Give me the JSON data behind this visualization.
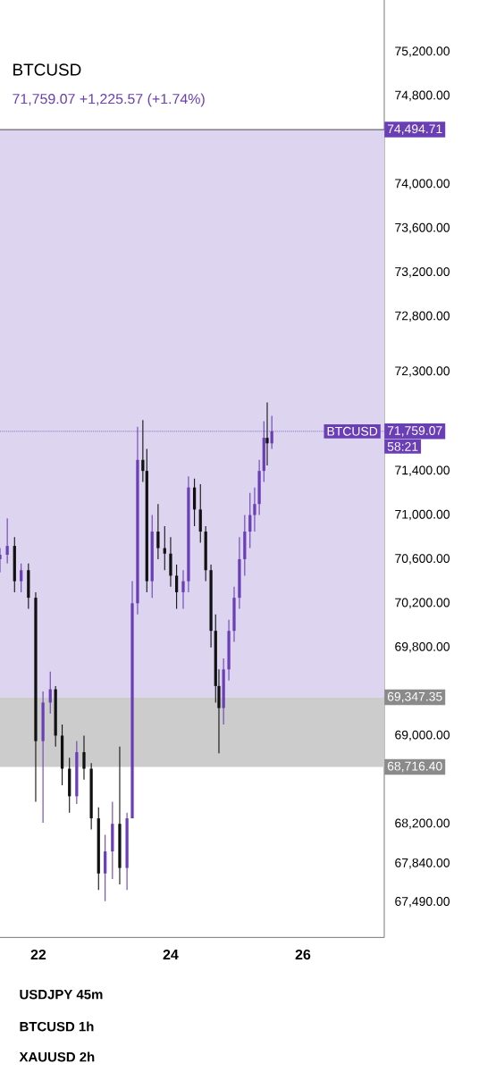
{
  "chart_data": {
    "type": "candlestick",
    "title": "BTCUSD",
    "subtitle": "71,759.07 +1,225.57 (+1.74%)",
    "grid": false,
    "colors": [
      "#6a3fb5",
      "#6a3fb5",
      "#111111",
      "#6a3fb5",
      "#111111",
      "#111111",
      "#6a3fb5",
      "#6a3fb5",
      "#111111",
      "#111111",
      "#111111",
      "#6a3fb5",
      "#111111",
      "#111111",
      "#111111",
      "#6a3fb5",
      "#6a3fb5",
      "#111111",
      "#6a3fb5",
      "#6a3fb5",
      "#6a3fb5",
      "#111111",
      "#111111",
      "#6a3fb5",
      "#111111",
      "#111111",
      "#111111",
      "#111111",
      "#6a3fb5",
      "#6a3fb5",
      "#111111",
      "#111111",
      "#111111",
      "#111111",
      "#111111",
      "#111111",
      "#6a3fb5",
      "#6a3fb5",
      "#6a3fb5",
      "#6a3fb5",
      "#6a3fb5",
      "#6a3fb5",
      "#6a3fb5",
      "#6a3fb5",
      "#6a3fb5",
      "#111111",
      "#6a3fb5"
    ],
    "x": [
      21.42,
      21.53,
      21.64,
      21.74,
      21.85,
      21.96,
      22.07,
      22.18,
      22.26,
      22.36,
      22.47,
      22.58,
      22.69,
      22.8,
      22.91,
      23.01,
      23.12,
      23.23,
      23.34,
      23.42,
      23.5,
      23.58,
      23.64,
      23.72,
      23.81,
      23.91,
      24.0,
      24.09,
      24.19,
      24.27,
      24.36,
      24.45,
      24.53,
      24.61,
      24.68,
      24.73,
      24.8,
      24.88,
      24.96,
      25.04,
      25.12,
      25.2,
      25.27,
      25.34,
      25.41,
      25.46,
      25.53
    ],
    "ohlc": [
      [
        70600,
        70700,
        70480,
        70640
      ],
      [
        70640,
        70970,
        70560,
        70720
      ],
      [
        70720,
        70800,
        70300,
        70400
      ],
      [
        70400,
        70560,
        70300,
        70500
      ],
      [
        70500,
        70560,
        70150,
        70250
      ],
      [
        70250,
        70300,
        68400,
        68950
      ],
      [
        68950,
        69400,
        68210,
        69300
      ],
      [
        69300,
        69580,
        69200,
        69420
      ],
      [
        69420,
        69450,
        68900,
        69000
      ],
      [
        69000,
        69100,
        68550,
        68700
      ],
      [
        68700,
        68800,
        68300,
        68450
      ],
      [
        68450,
        68950,
        68380,
        68850
      ],
      [
        68850,
        69000,
        68600,
        68700
      ],
      [
        68700,
        68750,
        68150,
        68250
      ],
      [
        68250,
        68350,
        67600,
        67750
      ],
      [
        67750,
        68100,
        67500,
        67950
      ],
      [
        67950,
        68400,
        67700,
        68200
      ],
      [
        68200,
        68900,
        67650,
        67800
      ],
      [
        67800,
        68300,
        67600,
        68250
      ],
      [
        68250,
        70400,
        68250,
        70200
      ],
      [
        70200,
        71800,
        70100,
        71500
      ],
      [
        71500,
        71860,
        71300,
        71400
      ],
      [
        71400,
        71600,
        70300,
        70400
      ],
      [
        70400,
        71000,
        70250,
        70850
      ],
      [
        70850,
        71100,
        70600,
        70700
      ],
      [
        70700,
        70900,
        70500,
        70650
      ],
      [
        70650,
        70800,
        70350,
        70450
      ],
      [
        70450,
        70550,
        70150,
        70300
      ],
      [
        70300,
        70500,
        70150,
        70400
      ],
      [
        70400,
        71350,
        70300,
        71250
      ],
      [
        71250,
        71330,
        70900,
        71050
      ],
      [
        71050,
        71280,
        70750,
        70850
      ],
      [
        70850,
        70900,
        70400,
        70500
      ],
      [
        70500,
        70550,
        69800,
        69950
      ],
      [
        69950,
        70100,
        69300,
        69450
      ],
      [
        69450,
        69600,
        68840,
        69250
      ],
      [
        69250,
        69700,
        69100,
        69600
      ],
      [
        69600,
        70050,
        69500,
        69950
      ],
      [
        69950,
        70350,
        69850,
        70250
      ],
      [
        70250,
        70800,
        70150,
        70600
      ],
      [
        70600,
        71000,
        70450,
        70850
      ],
      [
        70850,
        71200,
        70700,
        71000
      ],
      [
        71000,
        71250,
        70850,
        71100
      ],
      [
        71100,
        71500,
        71000,
        71400
      ],
      [
        71400,
        71850,
        71300,
        71700
      ],
      [
        71700,
        72020,
        71450,
        71650
      ],
      [
        71650,
        71900,
        71600,
        71759.07
      ]
    ],
    "xlim": [
      21.42,
      27.23
    ],
    "ylim": [
      67170,
      75740
    ],
    "xticks": [
      22,
      24,
      26
    ],
    "yticks": [
      {
        "value": 75200,
        "label": "75,200.00"
      },
      {
        "value": 74800,
        "label": "74,800.00"
      },
      {
        "value": 74000,
        "label": "74,000.00"
      },
      {
        "value": 73600,
        "label": "73,600.00"
      },
      {
        "value": 73200,
        "label": "73,200.00"
      },
      {
        "value": 72800,
        "label": "72,800.00"
      },
      {
        "value": 72300,
        "label": "72,300.00"
      },
      {
        "value": 71400,
        "label": "71,400.00"
      },
      {
        "value": 71000,
        "label": "71,000.00"
      },
      {
        "value": 70600,
        "label": "70,600.00"
      },
      {
        "value": 70200,
        "label": "70,200.00"
      },
      {
        "value": 69800,
        "label": "69,800.00"
      },
      {
        "value": 69000,
        "label": "69,000.00"
      },
      {
        "value": 68200,
        "label": "68,200.00"
      },
      {
        "value": 67840,
        "label": "67,840.00"
      },
      {
        "value": 67490,
        "label": "67,490.00"
      }
    ],
    "ref_lines": [
      {
        "axis": "y",
        "value": 74494.71,
        "label": "74,494.71",
        "color": "#222222",
        "line_style": "solid"
      },
      {
        "axis": "y",
        "value": 71759.07,
        "label": "71,759.07",
        "color": "#6a3fb5",
        "line_style": "dotted"
      }
    ],
    "bands": [
      {
        "axis": "y",
        "from": 69347.35,
        "to": 74494.71,
        "label": "69,347.35",
        "color": "#ddd5f0"
      },
      {
        "axis": "y",
        "from": 68716.4,
        "to": 69347.35,
        "label": "68,716.40",
        "color": "#cccccc"
      }
    ],
    "annotations": [
      "BTCUSD",
      "58:21",
      "USDJPY 45m",
      "BTCUSD 1h",
      "XAUUSD 2h"
    ]
  }
}
